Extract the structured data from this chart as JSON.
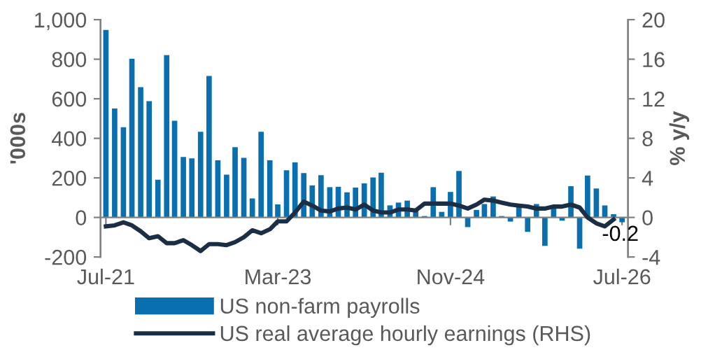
{
  "chart_data": {
    "type": "bar",
    "ylabel": "'000s",
    "y2label": "% y/y",
    "xlim": [
      "2021-06-12",
      "2026-07-22"
    ],
    "xticks": [
      {
        "value": "2021-07",
        "label": "Jul-21"
      },
      {
        "value": "2023-03",
        "label": "Mar-23"
      },
      {
        "value": "2024-11",
        "label": "Nov-24"
      },
      {
        "value": "2026-07",
        "label": "Jul-26"
      }
    ],
    "ylim": [
      -200,
      1000
    ],
    "yticks": [
      -200,
      0,
      200,
      400,
      600,
      800,
      {
        "value": 1000,
        "label": "1,000"
      }
    ],
    "y2lim": [
      -4,
      20
    ],
    "y2ticks": [
      -4,
      0,
      4,
      8,
      12,
      16,
      20
    ],
    "grid": false,
    "legend": "bottom",
    "annotations": [
      {
        "text": "-0.2",
        "x": "2026-06",
        "y": -0.2
      }
    ],
    "series": [
      {
        "name": "US non-farm payrolls",
        "color": "#0a6fae",
        "x": [
          "2021-07",
          "2021-08",
          "2021-09",
          "2021-10",
          "2021-11",
          "2021-12",
          "2022-01",
          "2022-02",
          "2022-03",
          "2022-04",
          "2022-05",
          "2022-06",
          "2022-07",
          "2022-08",
          "2022-09",
          "2022-10",
          "2022-11",
          "2022-12",
          "2023-01",
          "2023-02",
          "2023-03",
          "2023-04",
          "2023-05",
          "2023-06",
          "2023-07",
          "2023-08",
          "2023-09",
          "2023-10",
          "2023-11",
          "2023-12",
          "2024-01",
          "2024-02",
          "2024-03",
          "2024-04",
          "2024-05",
          "2024-06",
          "2024-07",
          "2024-08",
          "2024-09",
          "2024-10",
          "2024-11",
          "2024-12",
          "2025-01",
          "2025-02",
          "2025-03",
          "2025-04",
          "2025-05",
          "2025-06",
          "2025-07",
          "2025-08",
          "2025-09",
          "2025-10",
          "2025-11",
          "2025-12",
          "2026-01",
          "2026-02",
          "2026-03",
          "2026-04",
          "2026-05",
          "2026-06",
          "2026-07"
        ],
        "values": [
          948,
          551,
          456,
          802,
          659,
          588,
          191,
          821,
          489,
          306,
          299,
          433,
          715,
          289,
          216,
          355,
          301,
          96,
          433,
          289,
          66,
          238,
          278,
          224,
          162,
          214,
          153,
          155,
          127,
          151,
          172,
          202,
          226,
          61,
          75,
          85,
          33,
          7,
          153,
          28,
          129,
          235,
          -49,
          38,
          68,
          106,
          7,
          -21,
          68,
          -73,
          68,
          -144,
          49,
          -16,
          158,
          -158,
          212,
          146,
          61,
          16,
          -24
        ]
      },
      {
        "name": "US real average hourly earnings (RHS)",
        "type": "line",
        "axis": "y2",
        "color": "#1c2e45",
        "x": [
          "2021-07",
          "2021-08",
          "2021-09",
          "2021-10",
          "2021-11",
          "2021-12",
          "2022-01",
          "2022-02",
          "2022-03",
          "2022-04",
          "2022-05",
          "2022-06",
          "2022-07",
          "2022-08",
          "2022-09",
          "2022-10",
          "2022-11",
          "2022-12",
          "2023-01",
          "2023-02",
          "2023-03",
          "2023-04",
          "2023-05",
          "2023-06",
          "2023-07",
          "2023-08",
          "2023-09",
          "2023-10",
          "2023-11",
          "2023-12",
          "2024-01",
          "2024-02",
          "2024-03",
          "2024-04",
          "2024-05",
          "2024-06",
          "2024-07",
          "2024-08",
          "2024-09",
          "2024-10",
          "2024-11",
          "2024-12",
          "2025-01",
          "2025-02",
          "2025-03",
          "2025-04",
          "2025-05",
          "2025-06",
          "2025-07",
          "2025-08",
          "2025-09",
          "2025-10",
          "2025-11",
          "2025-12",
          "2026-01",
          "2026-02",
          "2026-03",
          "2026-04",
          "2026-05",
          "2026-06"
        ],
        "values": [
          -0.9,
          -0.8,
          -0.5,
          -0.8,
          -1.4,
          -2.1,
          -1.9,
          -2.6,
          -2.6,
          -2.3,
          -2.8,
          -3.4,
          -2.7,
          -2.7,
          -2.8,
          -2.5,
          -2.0,
          -1.3,
          -1.6,
          -1.2,
          -0.4,
          -0.4,
          0.5,
          1.6,
          1.2,
          0.7,
          0.6,
          0.9,
          1.0,
          0.8,
          1.3,
          0.7,
          0.5,
          0.5,
          0.8,
          0.8,
          0.7,
          1.4,
          1.4,
          1.4,
          1.4,
          1.2,
          0.9,
          1.3,
          1.8,
          1.7,
          1.5,
          1.3,
          1.2,
          1.1,
          0.9,
          0.9,
          1.1,
          1.1,
          1.3,
          1.0,
          0.0,
          -0.6,
          -0.9,
          -0.2
        ]
      }
    ]
  }
}
